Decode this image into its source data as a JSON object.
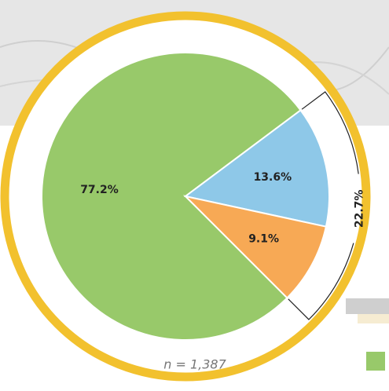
{
  "chart_data": {
    "type": "pie",
    "values": [
      77.2,
      13.6,
      9.1
    ],
    "value_labels": [
      "77.2%",
      "13.6%",
      "9.1%"
    ],
    "colors": [
      "#98c96a",
      "#8ec8e8",
      "#f7a955"
    ],
    "bracket": {
      "value": 22.7,
      "label": "22.7%"
    },
    "note": "n = 1,387"
  }
}
